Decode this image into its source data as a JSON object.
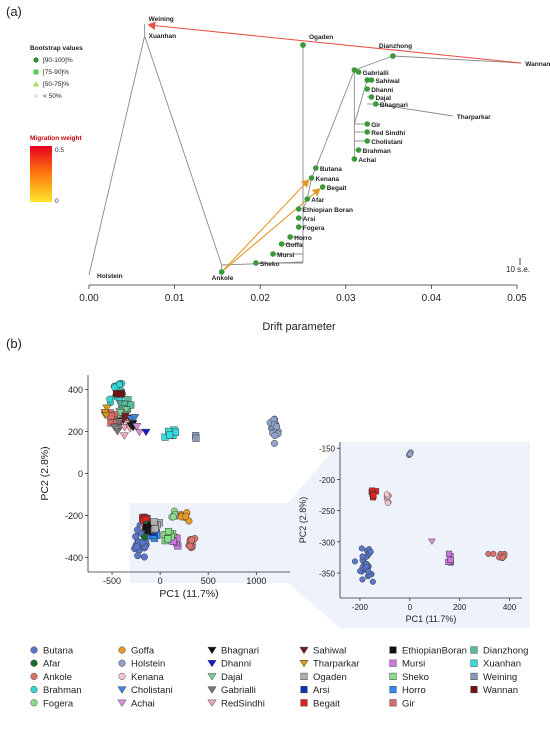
{
  "panel_labels": {
    "a": "(a)",
    "b": "(b)"
  },
  "tree": {
    "xlabel": "Drift parameter",
    "scale_label": "10 s.e.",
    "bootstrap_title": "Bootstrap values",
    "bootstrap_items": [
      {
        "label": "[90-100]%",
        "shape": "circle",
        "color": "#2e8b2e"
      },
      {
        "label": "[75-90]%",
        "shape": "square",
        "color": "#55cc55"
      },
      {
        "label": "[50-75]%",
        "shape": "triangle",
        "color": "#a6e05a"
      },
      {
        "label": "< 50%",
        "shape": "cross",
        "color": "#cccccc"
      }
    ],
    "migration_title": "Migration weight",
    "migration_max": "0.5",
    "migration_min": "0",
    "node_color": "#3a9a3a"
  },
  "chart_data": [
    {
      "type": "tree",
      "xlabel": "Drift parameter",
      "xlim": [
        0.0,
        0.05
      ],
      "xticks": [
        "0.00",
        "0.01",
        "0.02",
        "0.03",
        "0.04",
        "0.05"
      ],
      "leaves": [
        {
          "name": "Weining",
          "x": 0.0065
        },
        {
          "name": "Xuanhan",
          "x": 0.0065
        },
        {
          "name": "Holstein",
          "x": 0.0
        },
        {
          "name": "Ogaden",
          "x": 0.025
        },
        {
          "name": "Dianzhong",
          "x": 0.0355
        },
        {
          "name": "Wannan",
          "x": 0.0505
        },
        {
          "name": "Gabrialli",
          "x": 0.0315
        },
        {
          "name": "Sahiwal",
          "x": 0.033
        },
        {
          "name": "Dhanni",
          "x": 0.0325
        },
        {
          "name": "Dajal",
          "x": 0.033
        },
        {
          "name": "Bhagnari",
          "x": 0.0335
        },
        {
          "name": "Tharparkar",
          "x": 0.0425
        },
        {
          "name": "Gir",
          "x": 0.0325
        },
        {
          "name": "Red Sindhi",
          "x": 0.0325
        },
        {
          "name": "Cholistani",
          "x": 0.0325
        },
        {
          "name": "Brahman",
          "x": 0.0315
        },
        {
          "name": "Achai",
          "x": 0.031
        },
        {
          "name": "Butana",
          "x": 0.0265
        },
        {
          "name": "Kenana",
          "x": 0.026
        },
        {
          "name": "Begait",
          "x": 0.0273
        },
        {
          "name": "Afar",
          "x": 0.0255
        },
        {
          "name": "Ethiopian Boran",
          "x": 0.0245
        },
        {
          "name": "Arsi",
          "x": 0.0245
        },
        {
          "name": "Fogera",
          "x": 0.0245
        },
        {
          "name": "Horro",
          "x": 0.0235
        },
        {
          "name": "Goffa",
          "x": 0.0225
        },
        {
          "name": "Mursi",
          "x": 0.0215
        },
        {
          "name": "Sheko",
          "x": 0.0195
        },
        {
          "name": "Ankole",
          "x": 0.0155
        }
      ],
      "migration_edges": [
        {
          "from": "Wannan",
          "to": "Weining",
          "weight": 0.5
        },
        {
          "from": "Ankole",
          "to": "Begait",
          "weight": 0.15
        },
        {
          "from": "Ankole",
          "to": "Kenana",
          "weight": 0.12
        }
      ]
    },
    {
      "type": "scatter",
      "xlabel": "PC1 (11.7%)",
      "ylabel": "PC2 (2.8%)",
      "xlim": [
        -750,
        1350
      ],
      "ylim": [
        -470,
        470
      ],
      "xticks": [
        -500,
        0,
        500,
        1000
      ],
      "yticks": [
        -400,
        -200,
        0,
        200,
        400
      ],
      "clusters": [
        {
          "name": "Brahman",
          "cx": -430,
          "cy": 390,
          "sx": 50,
          "sy": 40,
          "n": 30
        },
        {
          "name": "Wannan",
          "cx": -420,
          "cy": 390,
          "sx": 20,
          "sy": 20,
          "n": 4
        },
        {
          "name": "Dianzhong",
          "cx": -360,
          "cy": 320,
          "sx": 50,
          "sy": 40,
          "n": 8
        },
        {
          "name": "Gir",
          "cx": -500,
          "cy": 270,
          "sx": 40,
          "sy": 30,
          "n": 6
        },
        {
          "name": "Dajal",
          "cx": -400,
          "cy": 280,
          "sx": 40,
          "sy": 30,
          "n": 5
        },
        {
          "name": "Sahiwal",
          "cx": -350,
          "cy": 260,
          "sx": 40,
          "sy": 30,
          "n": 5
        },
        {
          "name": "Tharparkar",
          "cx": -560,
          "cy": 290,
          "sx": 20,
          "sy": 20,
          "n": 4
        },
        {
          "name": "Gabrialli",
          "cx": -470,
          "cy": 240,
          "sx": 30,
          "sy": 25,
          "n": 4
        },
        {
          "name": "Cholistani",
          "cx": -300,
          "cy": 250,
          "sx": 30,
          "sy": 25,
          "n": 4
        },
        {
          "name": "RedSindhi",
          "cx": -320,
          "cy": 230,
          "sx": 30,
          "sy": 25,
          "n": 4
        },
        {
          "name": "Bhagnari",
          "cx": -280,
          "cy": 220,
          "sx": 20,
          "sy": 20,
          "n": 3
        },
        {
          "name": "Achai",
          "cx": -250,
          "cy": 210,
          "sx": 20,
          "sy": 20,
          "n": 3
        },
        {
          "name": "Dhanni",
          "cx": -150,
          "cy": 195,
          "sx": 10,
          "sy": 10,
          "n": 1
        },
        {
          "name": "Xuanhan",
          "cx": 150,
          "cy": 195,
          "sx": 60,
          "sy": 20,
          "n": 6
        },
        {
          "name": "Weining",
          "cx": 380,
          "cy": 170,
          "sx": 20,
          "sy": 15,
          "n": 2
        },
        {
          "name": "Holstein",
          "cx": 1180,
          "cy": 220,
          "sx": 30,
          "sy": 45,
          "n": 22
        },
        {
          "name": "Butana",
          "cx": -200,
          "cy": -320,
          "sx": 60,
          "sy": 60,
          "n": 30
        },
        {
          "name": "Kenana",
          "cx": -130,
          "cy": -240,
          "sx": 30,
          "sy": 25,
          "n": 8
        },
        {
          "name": "Begait",
          "cx": -150,
          "cy": -220,
          "sx": 25,
          "sy": 20,
          "n": 8
        },
        {
          "name": "Afar",
          "cx": -150,
          "cy": -260,
          "sx": 30,
          "sy": 30,
          "n": 5
        },
        {
          "name": "Ankole",
          "cx": 320,
          "cy": -330,
          "sx": 40,
          "sy": 25,
          "n": 12
        },
        {
          "name": "Fogera",
          "cx": 160,
          "cy": -200,
          "sx": 30,
          "sy": 15,
          "n": 6
        },
        {
          "name": "Goffa",
          "cx": 260,
          "cy": -200,
          "sx": 40,
          "sy": 15,
          "n": 8
        },
        {
          "name": "Mursi",
          "cx": 150,
          "cy": -330,
          "sx": 30,
          "sy": 20,
          "n": 6
        },
        {
          "name": "Sheko",
          "cx": 80,
          "cy": -300,
          "sx": 40,
          "sy": 25,
          "n": 8
        },
        {
          "name": "Horro",
          "cx": -60,
          "cy": -290,
          "sx": 40,
          "sy": 30,
          "n": 8
        },
        {
          "name": "Arsi",
          "cx": -90,
          "cy": -270,
          "sx": 30,
          "sy": 25,
          "n": 6
        },
        {
          "name": "EthiopianBoran",
          "cx": -110,
          "cy": -250,
          "sx": 30,
          "sy": 25,
          "n": 5
        },
        {
          "name": "Ogaden",
          "cx": -50,
          "cy": -240,
          "sx": 30,
          "sy": 25,
          "n": 6
        }
      ]
    },
    {
      "type": "scatter",
      "xlabel": "PC1 (11.7%)",
      "ylabel": "PC2 (2.8%)",
      "xlim": [
        -280,
        450
      ],
      "ylim": [
        -390,
        -140
      ],
      "xticks": [
        -200,
        0,
        200,
        400
      ],
      "yticks": [
        -150,
        -200,
        -250,
        -300,
        -350
      ],
      "clusters": [
        {
          "name": "Butana",
          "cx": -175,
          "cy": -335,
          "sx": 25,
          "sy": 20,
          "n": 32
        },
        {
          "name": "Kenana",
          "cx": -90,
          "cy": -230,
          "sx": 12,
          "sy": 10,
          "n": 7
        },
        {
          "name": "Begait",
          "cx": -150,
          "cy": -222,
          "sx": 8,
          "sy": 8,
          "n": 7
        },
        {
          "name": "Holstein",
          "cx": 0,
          "cy": -160,
          "sx": 20,
          "sy": 5,
          "n": 3
        },
        {
          "name": "Ankole",
          "cx": 360,
          "cy": -325,
          "sx": 25,
          "sy": 10,
          "n": 8
        },
        {
          "name": "Mursi",
          "cx": 165,
          "cy": -330,
          "sx": 12,
          "sy": 10,
          "n": 6
        },
        {
          "name": "Achai",
          "cx": 80,
          "cy": -300,
          "sx": 5,
          "sy": 5,
          "n": 1
        }
      ]
    }
  ],
  "pca_legend": [
    {
      "name": "Butana",
      "marker": "circle",
      "color": "#5b76c9"
    },
    {
      "name": "Afar",
      "marker": "circle",
      "color": "#1f6b2b"
    },
    {
      "name": "Ankole",
      "marker": "circle",
      "color": "#d9736f"
    },
    {
      "name": "Brahman",
      "marker": "circle",
      "color": "#33d6d0"
    },
    {
      "name": "Fogera",
      "marker": "circle",
      "color": "#8fd98c"
    },
    {
      "name": "Goffa",
      "marker": "circle",
      "color": "#e89a2c"
    },
    {
      "name": "Holstein",
      "marker": "circle",
      "color": "#8fa2c9"
    },
    {
      "name": "Kenana",
      "marker": "circle",
      "color": "#f6c5cf"
    },
    {
      "name": "Cholistani",
      "marker": "tri-down",
      "color": "#3b86d6"
    },
    {
      "name": "Achai",
      "marker": "tri-down",
      "color": "#d98fe0"
    },
    {
      "name": "Bhagnari",
      "marker": "tri-down",
      "color": "#111111"
    },
    {
      "name": "Dhanni",
      "marker": "tri-down",
      "color": "#1a1acc"
    },
    {
      "name": "Dajal",
      "marker": "tri-down",
      "color": "#7ccf9a"
    },
    {
      "name": "Gabrialli",
      "marker": "tri-down",
      "color": "#777777"
    },
    {
      "name": "RedSindhi",
      "marker": "tri-down",
      "color": "#f3a9b9"
    },
    {
      "name": "Sahiwal",
      "marker": "tri-down",
      "color": "#7a1a1a"
    },
    {
      "name": "Tharparkar",
      "marker": "tri-down",
      "color": "#d99a1a"
    },
    {
      "name": "Ogaden",
      "marker": "square",
      "color": "#b0b0b0"
    },
    {
      "name": "Arsi",
      "marker": "square",
      "color": "#1133bb"
    },
    {
      "name": "Begait",
      "marker": "square",
      "color": "#dd2222"
    },
    {
      "name": "EthiopianBoran",
      "marker": "square",
      "color": "#111111"
    },
    {
      "name": "Mursi",
      "marker": "square",
      "color": "#cc77dd"
    },
    {
      "name": "Sheko",
      "marker": "square",
      "color": "#88dd88"
    },
    {
      "name": "Horro",
      "marker": "square",
      "color": "#3388ee"
    },
    {
      "name": "Gir",
      "marker": "square",
      "color": "#d76a6a"
    },
    {
      "name": "Dianzhong",
      "marker": "square",
      "color": "#55bb99"
    },
    {
      "name": "Xuanhan",
      "marker": "square",
      "color": "#33dddd"
    },
    {
      "name": "Weining",
      "marker": "square",
      "color": "#8899bb"
    },
    {
      "name": "Wannan",
      "marker": "square",
      "color": "#771111"
    }
  ]
}
